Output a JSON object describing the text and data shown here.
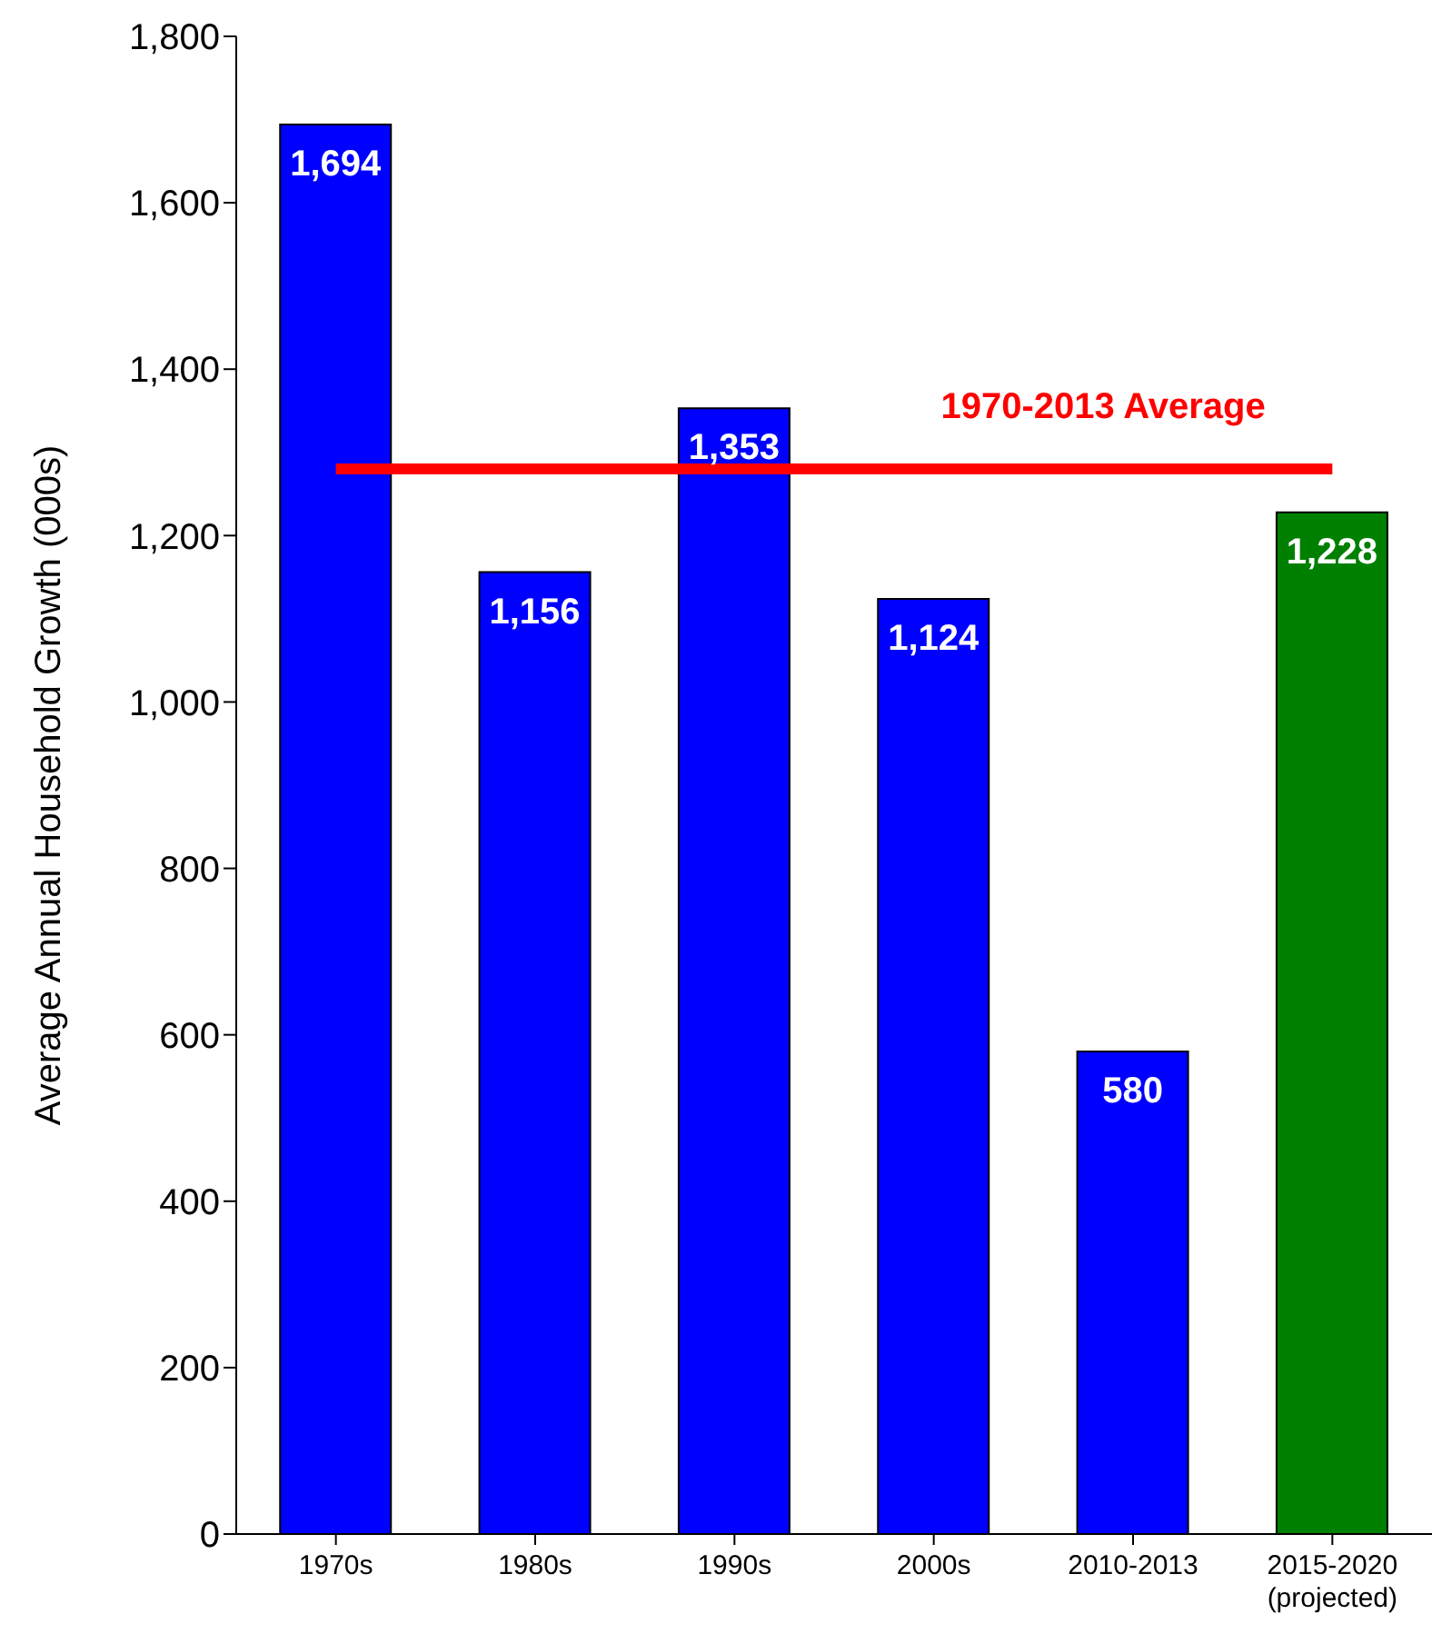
{
  "chart_data": {
    "type": "bar",
    "ylabel": "Average Annual Household Growth (000s)",
    "categories": [
      "1970s",
      "1980s",
      "1990s",
      "2000s",
      "2010-2013",
      "2015-2020\n(projected)"
    ],
    "values": [
      1694,
      1156,
      1353,
      1124,
      580,
      1228
    ],
    "colors": [
      "#0000ff",
      "#0000ff",
      "#0000ff",
      "#0000ff",
      "#0000ff",
      "#008000"
    ],
    "value_labels": [
      "1,694",
      "1,156",
      "1,353",
      "1,124",
      "580",
      "1,228"
    ],
    "ylim": [
      0,
      1800
    ],
    "yticks": [
      {
        "value": 0,
        "label": "0"
      },
      {
        "value": 200,
        "label": "200"
      },
      {
        "value": 400,
        "label": "400"
      },
      {
        "value": 600,
        "label": "600"
      },
      {
        "value": 800,
        "label": "800"
      },
      {
        "value": 1000,
        "label": "1,000"
      },
      {
        "value": 1200,
        "label": "1,200"
      },
      {
        "value": 1400,
        "label": "1,400"
      },
      {
        "value": 1600,
        "label": "1,600"
      },
      {
        "value": 1800,
        "label": "1,800"
      }
    ],
    "ref_lines": [
      {
        "axis": "y",
        "value": 1280,
        "label": "1970-2013 Average",
        "color": "#ff0000"
      }
    ],
    "grid": false,
    "legend": false
  }
}
